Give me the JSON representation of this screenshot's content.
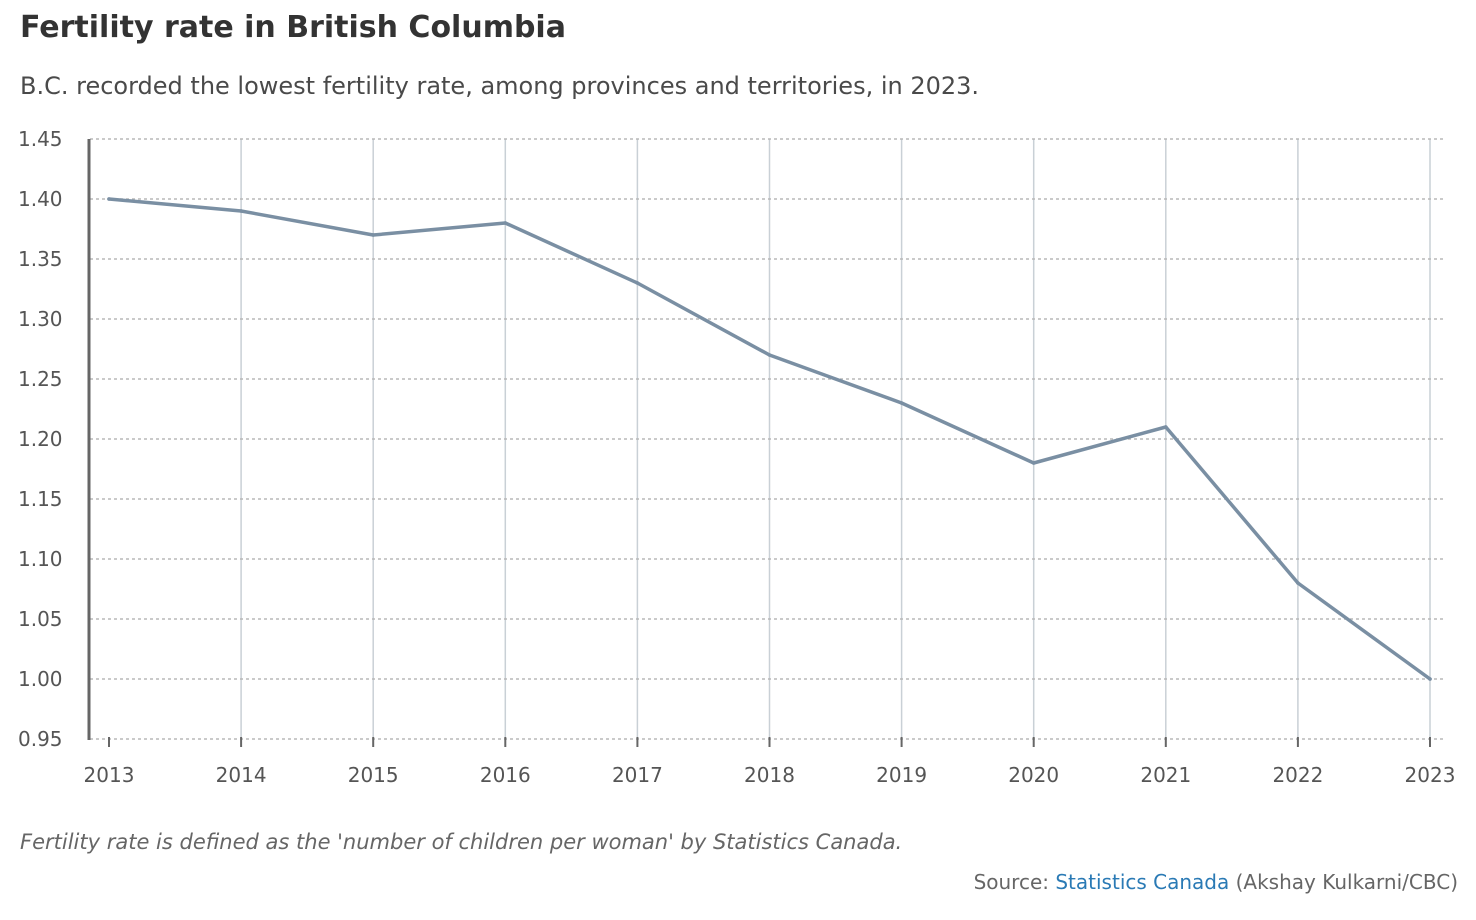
{
  "header": {
    "title": "Fertility rate in British Columbia",
    "subtitle": "B.C. recorded the lowest fertility rate, among provinces and territories, in 2023."
  },
  "footer": {
    "note": "Fertility rate is defined as the 'number of children per woman' by Statistics Canada.",
    "source_prefix": "Source: ",
    "source_link": "Statistics Canada",
    "source_suffix": " (Akshay Kulkarni/CBC)"
  },
  "colors": {
    "line": "#7a8fa3",
    "grid": "#b8b8b8",
    "axis": "#666666",
    "link": "#2a7ab5"
  },
  "chart_data": {
    "type": "line",
    "title": "Fertility rate in British Columbia",
    "xlabel": "",
    "ylabel": "",
    "x": [
      "2013",
      "2014",
      "2015",
      "2016",
      "2017",
      "2018",
      "2019",
      "2020",
      "2021",
      "2022",
      "2023"
    ],
    "series": [
      {
        "name": "Fertility rate",
        "values": [
          1.4,
          1.39,
          1.37,
          1.38,
          1.33,
          1.27,
          1.23,
          1.18,
          1.21,
          1.08,
          1.0
        ]
      }
    ],
    "ylim": [
      0.95,
      1.45
    ],
    "yticks": [
      "0.95",
      "1.00",
      "1.05",
      "1.10",
      "1.15",
      "1.20",
      "1.25",
      "1.30",
      "1.35",
      "1.40",
      "1.45"
    ],
    "grid": true
  }
}
